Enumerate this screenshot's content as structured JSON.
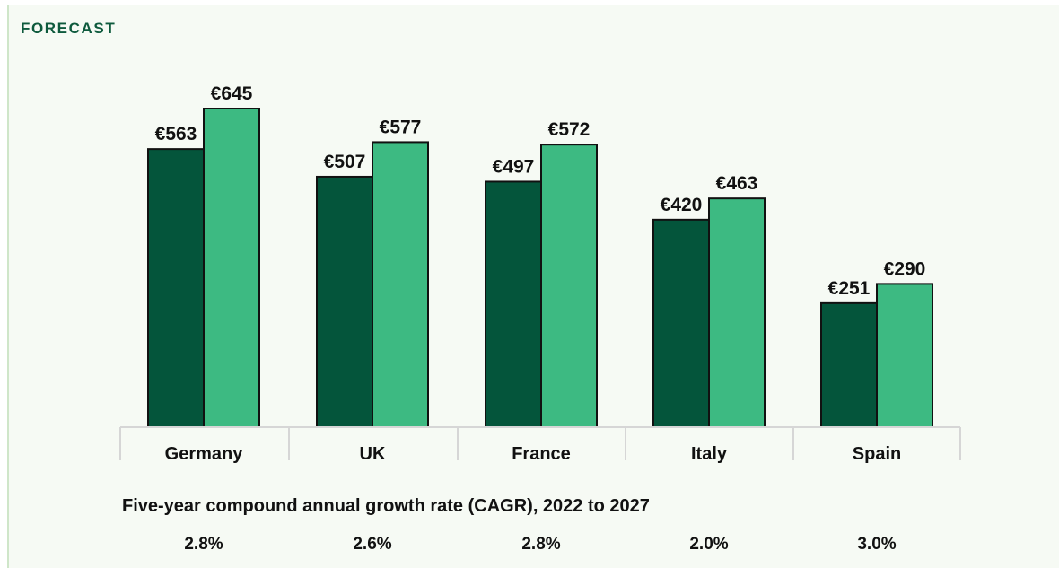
{
  "heading": "FORECAST",
  "colors": {
    "series_2022": "#04553b",
    "series_2027": "#3dba82",
    "axis": "#d6d6d6",
    "text": "#111111",
    "heading": "#0e5a3d"
  },
  "chart_data": {
    "type": "bar",
    "title": "",
    "categories": [
      "Germany",
      "UK",
      "France",
      "Italy",
      "Spain"
    ],
    "series": [
      {
        "values": [
          563,
          507,
          497,
          420,
          251
        ],
        "labels": [
          "€563",
          "€507",
          "€497",
          "€420",
          "€251"
        ]
      },
      {
        "values": [
          645,
          577,
          572,
          463,
          290
        ],
        "labels": [
          "€645",
          "€577",
          "€572",
          "€463",
          "€290"
        ]
      }
    ],
    "ylim": [
      0,
      645
    ],
    "grid": false,
    "legend": "none"
  },
  "cagr": {
    "title": "Five-year compound annual growth rate (CAGR), 2022 to 2027",
    "values": [
      "2.8%",
      "2.6%",
      "2.8%",
      "2.0%",
      "3.0%"
    ]
  }
}
